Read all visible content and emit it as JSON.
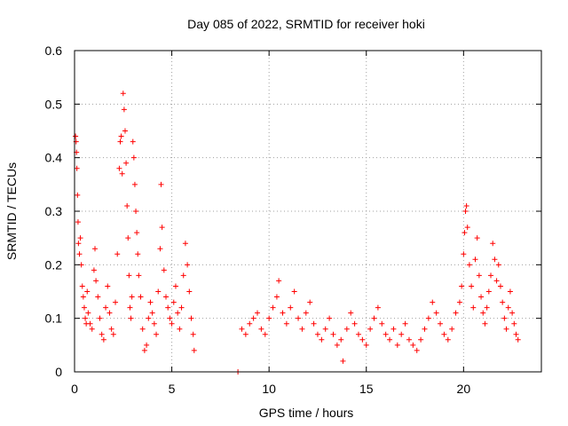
{
  "chart_data": {
    "type": "scatter",
    "title": "Day 085 of 2022, SRMTID for receiver hoki",
    "xlabel": "GPS time / hours",
    "ylabel": "SRMTID / TECUs",
    "xlim": [
      0,
      24
    ],
    "ylim": [
      0,
      0.6
    ],
    "x_ticks": [
      0,
      5,
      10,
      15,
      20
    ],
    "x_tick_labels": [
      "0",
      "5",
      "10",
      "15",
      "20"
    ],
    "y_ticks": [
      0,
      0.1,
      0.2,
      0.3,
      0.4,
      0.5,
      0.6
    ],
    "y_tick_labels": [
      "0",
      "0.1",
      "0.2",
      "0.3",
      "0.4",
      "0.5",
      "0.6"
    ],
    "grid": true,
    "marker": "+",
    "color": "#ff0000",
    "series": [
      {
        "name": "SRMTID",
        "points": [
          [
            0.05,
            0.44
          ],
          [
            0.08,
            0.43
          ],
          [
            0.1,
            0.41
          ],
          [
            0.12,
            0.38
          ],
          [
            0.15,
            0.33
          ],
          [
            0.18,
            0.28
          ],
          [
            0.2,
            0.24
          ],
          [
            0.25,
            0.22
          ],
          [
            0.3,
            0.25
          ],
          [
            0.35,
            0.2
          ],
          [
            0.4,
            0.16
          ],
          [
            0.45,
            0.14
          ],
          [
            0.5,
            0.12
          ],
          [
            0.55,
            0.1
          ],
          [
            0.6,
            0.09
          ],
          [
            0.65,
            0.15
          ],
          [
            0.7,
            0.11
          ],
          [
            0.8,
            0.09
          ],
          [
            0.9,
            0.08
          ],
          [
            1.0,
            0.19
          ],
          [
            1.05,
            0.23
          ],
          [
            1.1,
            0.17
          ],
          [
            1.2,
            0.14
          ],
          [
            1.3,
            0.1
          ],
          [
            1.4,
            0.07
          ],
          [
            1.5,
            0.06
          ],
          [
            1.6,
            0.12
          ],
          [
            1.7,
            0.16
          ],
          [
            1.8,
            0.11
          ],
          [
            1.9,
            0.08
          ],
          [
            2.0,
            0.07
          ],
          [
            2.1,
            0.13
          ],
          [
            2.2,
            0.22
          ],
          [
            2.3,
            0.38
          ],
          [
            2.35,
            0.43
          ],
          [
            2.4,
            0.44
          ],
          [
            2.45,
            0.37
          ],
          [
            2.5,
            0.52
          ],
          [
            2.55,
            0.49
          ],
          [
            2.6,
            0.45
          ],
          [
            2.65,
            0.39
          ],
          [
            2.7,
            0.31
          ],
          [
            2.75,
            0.25
          ],
          [
            2.8,
            0.18
          ],
          [
            2.85,
            0.12
          ],
          [
            2.9,
            0.1
          ],
          [
            2.95,
            0.14
          ],
          [
            3.0,
            0.43
          ],
          [
            3.05,
            0.4
          ],
          [
            3.1,
            0.35
          ],
          [
            3.15,
            0.3
          ],
          [
            3.2,
            0.26
          ],
          [
            3.25,
            0.22
          ],
          [
            3.3,
            0.18
          ],
          [
            3.4,
            0.14
          ],
          [
            3.5,
            0.08
          ],
          [
            3.6,
            0.04
          ],
          [
            3.7,
            0.05
          ],
          [
            3.8,
            0.1
          ],
          [
            3.9,
            0.13
          ],
          [
            4.0,
            0.11
          ],
          [
            4.1,
            0.09
          ],
          [
            4.2,
            0.07
          ],
          [
            4.3,
            0.15
          ],
          [
            4.4,
            0.23
          ],
          [
            4.45,
            0.35
          ],
          [
            4.5,
            0.27
          ],
          [
            4.6,
            0.19
          ],
          [
            4.7,
            0.14
          ],
          [
            4.8,
            0.12
          ],
          [
            4.9,
            0.1
          ],
          [
            5.0,
            0.09
          ],
          [
            5.1,
            0.13
          ],
          [
            5.2,
            0.16
          ],
          [
            5.3,
            0.11
          ],
          [
            5.4,
            0.08
          ],
          [
            5.5,
            0.12
          ],
          [
            5.6,
            0.18
          ],
          [
            5.7,
            0.24
          ],
          [
            5.8,
            0.2
          ],
          [
            5.9,
            0.15
          ],
          [
            6.0,
            0.1
          ],
          [
            6.1,
            0.07
          ],
          [
            6.15,
            0.04
          ],
          [
            8.4,
            0.0
          ],
          [
            8.6,
            0.08
          ],
          [
            8.8,
            0.07
          ],
          [
            9.0,
            0.09
          ],
          [
            9.2,
            0.1
          ],
          [
            9.4,
            0.11
          ],
          [
            9.6,
            0.08
          ],
          [
            9.8,
            0.07
          ],
          [
            10.0,
            0.1
          ],
          [
            10.2,
            0.12
          ],
          [
            10.4,
            0.14
          ],
          [
            10.5,
            0.17
          ],
          [
            10.7,
            0.11
          ],
          [
            10.9,
            0.09
          ],
          [
            11.1,
            0.12
          ],
          [
            11.3,
            0.15
          ],
          [
            11.5,
            0.1
          ],
          [
            11.7,
            0.08
          ],
          [
            11.9,
            0.11
          ],
          [
            12.1,
            0.13
          ],
          [
            12.3,
            0.09
          ],
          [
            12.5,
            0.07
          ],
          [
            12.7,
            0.06
          ],
          [
            12.9,
            0.08
          ],
          [
            13.1,
            0.1
          ],
          [
            13.3,
            0.07
          ],
          [
            13.5,
            0.05
          ],
          [
            13.7,
            0.06
          ],
          [
            13.8,
            0.02
          ],
          [
            14.0,
            0.08
          ],
          [
            14.2,
            0.11
          ],
          [
            14.4,
            0.09
          ],
          [
            14.6,
            0.07
          ],
          [
            14.8,
            0.06
          ],
          [
            15.0,
            0.05
          ],
          [
            15.2,
            0.08
          ],
          [
            15.4,
            0.1
          ],
          [
            15.6,
            0.12
          ],
          [
            15.8,
            0.09
          ],
          [
            16.0,
            0.07
          ],
          [
            16.2,
            0.06
          ],
          [
            16.4,
            0.08
          ],
          [
            16.6,
            0.05
          ],
          [
            16.8,
            0.07
          ],
          [
            17.0,
            0.09
          ],
          [
            17.2,
            0.06
          ],
          [
            17.4,
            0.05
          ],
          [
            17.6,
            0.04
          ],
          [
            17.8,
            0.06
          ],
          [
            18.0,
            0.08
          ],
          [
            18.2,
            0.1
          ],
          [
            18.4,
            0.13
          ],
          [
            18.6,
            0.11
          ],
          [
            18.8,
            0.09
          ],
          [
            19.0,
            0.07
          ],
          [
            19.2,
            0.06
          ],
          [
            19.4,
            0.08
          ],
          [
            19.6,
            0.11
          ],
          [
            19.8,
            0.13
          ],
          [
            19.9,
            0.16
          ],
          [
            20.0,
            0.22
          ],
          [
            20.05,
            0.26
          ],
          [
            20.1,
            0.3
          ],
          [
            20.15,
            0.31
          ],
          [
            20.2,
            0.27
          ],
          [
            20.3,
            0.2
          ],
          [
            20.4,
            0.16
          ],
          [
            20.5,
            0.12
          ],
          [
            20.6,
            0.21
          ],
          [
            20.7,
            0.25
          ],
          [
            20.8,
            0.18
          ],
          [
            20.9,
            0.14
          ],
          [
            21.0,
            0.11
          ],
          [
            21.1,
            0.09
          ],
          [
            21.2,
            0.12
          ],
          [
            21.3,
            0.15
          ],
          [
            21.4,
            0.18
          ],
          [
            21.5,
            0.24
          ],
          [
            21.6,
            0.21
          ],
          [
            21.7,
            0.17
          ],
          [
            21.8,
            0.2
          ],
          [
            21.9,
            0.16
          ],
          [
            22.0,
            0.13
          ],
          [
            22.1,
            0.1
          ],
          [
            22.2,
            0.08
          ],
          [
            22.3,
            0.12
          ],
          [
            22.4,
            0.15
          ],
          [
            22.5,
            0.11
          ],
          [
            22.6,
            0.09
          ],
          [
            22.7,
            0.07
          ],
          [
            22.8,
            0.06
          ]
        ]
      }
    ]
  }
}
